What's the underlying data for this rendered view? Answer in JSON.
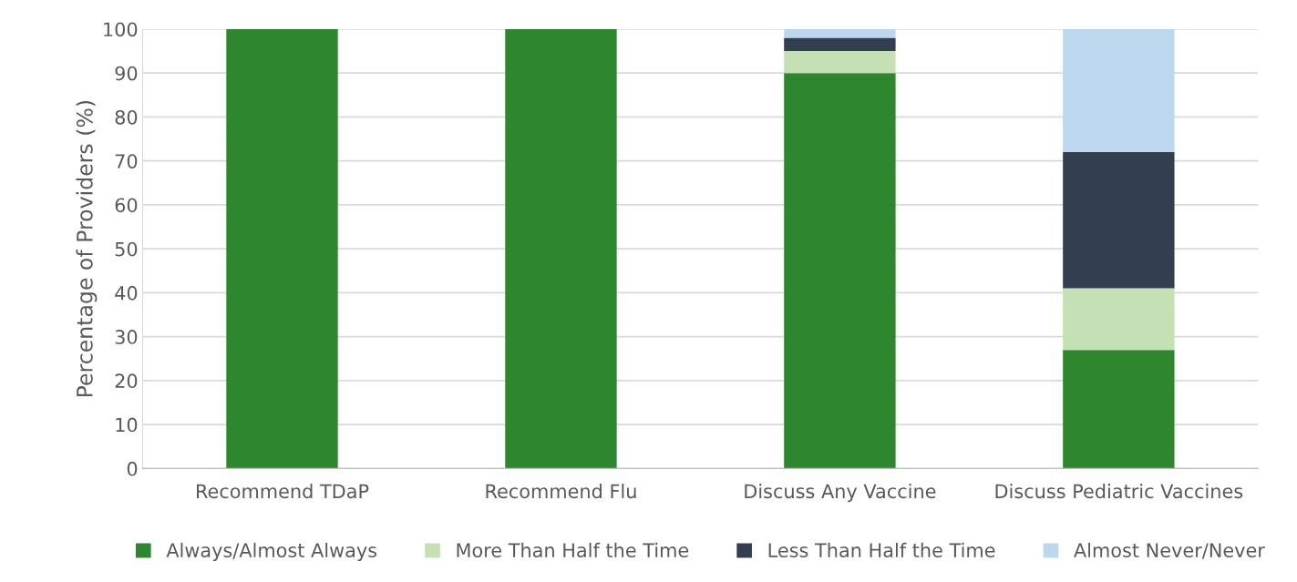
{
  "chart_data": {
    "type": "bar",
    "stacked": true,
    "ylabel": "Percentage of Providers (%)",
    "categories": [
      "Recommend TDaP",
      "Recommend Flu",
      "Discuss Any Vaccine",
      "Discuss Pediatric Vaccines"
    ],
    "series": [
      {
        "name": "Always/Almost Always",
        "color": "#2e862e",
        "values": [
          100,
          100,
          90,
          27
        ]
      },
      {
        "name": "More Than Half the Time",
        "color": "#c5e0b4",
        "values": [
          0,
          0,
          5,
          14
        ]
      },
      {
        "name": "Less Than Half the Time",
        "color": "#333f50",
        "values": [
          0,
          0,
          3,
          31
        ]
      },
      {
        "name": "Almost Never/Never",
        "color": "#bdd7ee",
        "values": [
          0,
          0,
          2,
          28
        ]
      }
    ],
    "ylim": [
      0,
      100
    ],
    "yticks": [
      0,
      10,
      20,
      30,
      40,
      50,
      60,
      70,
      80,
      90,
      100
    ],
    "grid": "y",
    "legend": "bottom"
  }
}
